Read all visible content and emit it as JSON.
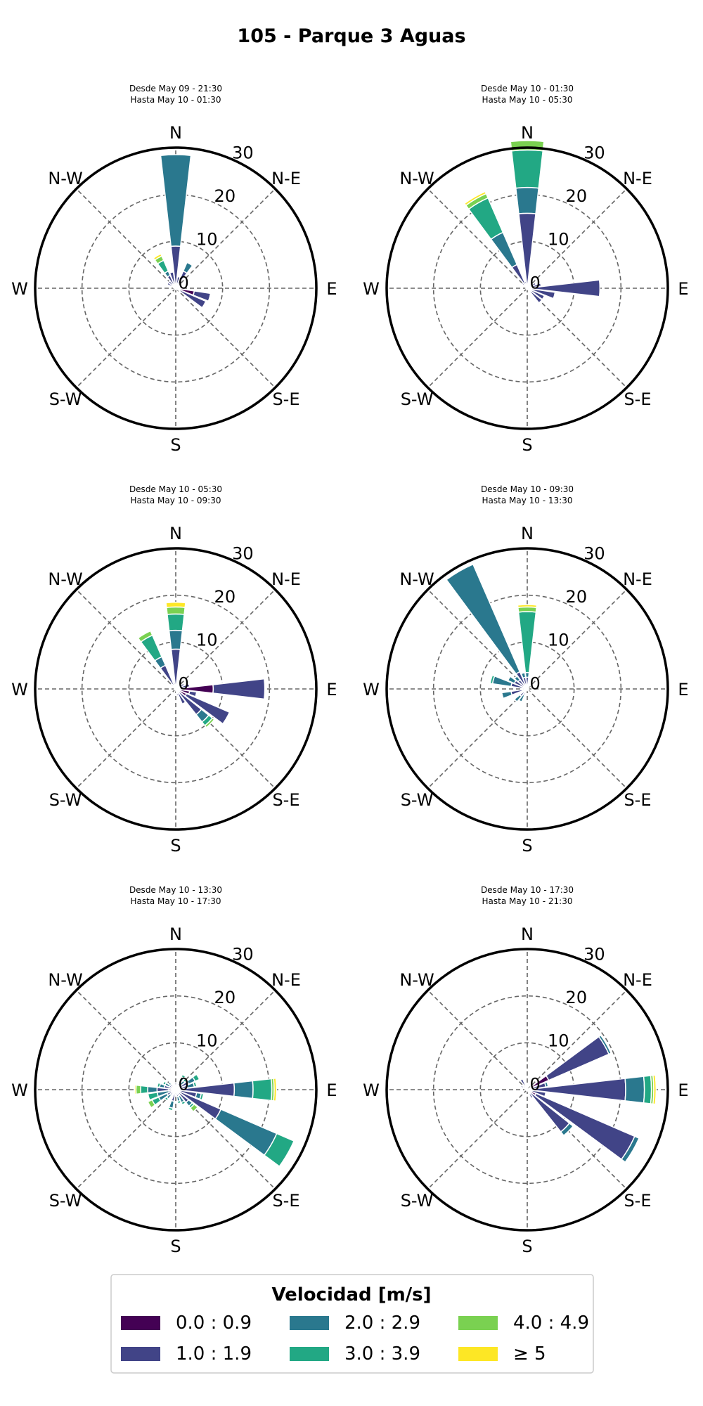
{
  "title": "105 - Parque 3 Aguas",
  "chart_data": [
    {
      "type": "polar_stacked_bar",
      "subtitle": [
        "Desde May 09 - 21:30",
        "Hasta May 10 - 01:30"
      ],
      "stacks": [
        {
          "dir": 0,
          "values": [
            0.5,
            8.5,
            19.5,
            0,
            0,
            0
          ]
        },
        {
          "dir": 15,
          "values": [
            0.5,
            2,
            0,
            0,
            0,
            0
          ]
        },
        {
          "dir": 30,
          "values": [
            0.5,
            3.5,
            2,
            0,
            0,
            0
          ]
        },
        {
          "dir": 45,
          "values": [
            0.3,
            1,
            0,
            0,
            0,
            0
          ]
        },
        {
          "dir": 60,
          "values": [
            0.3,
            0.5,
            0,
            0,
            0,
            0
          ]
        },
        {
          "dir": 75,
          "values": [
            0.5,
            0.5,
            0,
            0,
            0,
            0
          ]
        },
        {
          "dir": 90,
          "values": [
            1,
            0,
            0,
            0,
            0,
            0
          ]
        },
        {
          "dir": 105,
          "values": [
            4,
            3.5,
            0,
            0,
            0,
            0
          ]
        },
        {
          "dir": 120,
          "values": [
            0.5,
            6.5,
            0,
            0,
            0,
            0
          ]
        },
        {
          "dir": 135,
          "values": [
            0.3,
            0,
            0,
            0,
            0,
            0
          ]
        },
        {
          "dir": 165,
          "values": [
            0.3,
            0,
            0,
            0,
            0,
            0
          ]
        },
        {
          "dir": 195,
          "values": [
            0.3,
            0,
            0,
            0,
            0,
            0
          ]
        },
        {
          "dir": 225,
          "values": [
            0.3,
            0,
            0,
            0,
            0,
            0
          ]
        },
        {
          "dir": 255,
          "values": [
            0.3,
            0,
            0,
            0,
            0,
            0
          ]
        },
        {
          "dir": 285,
          "values": [
            0.5,
            0,
            0,
            0,
            0,
            0
          ]
        },
        {
          "dir": 300,
          "values": [
            0.5,
            1.5,
            0,
            0,
            0,
            0
          ]
        },
        {
          "dir": 315,
          "values": [
            0.5,
            1.5,
            0,
            0,
            0,
            0
          ]
        },
        {
          "dir": 330,
          "values": [
            0.5,
            2.5,
            1,
            2.5,
            1,
            0.5
          ]
        },
        {
          "dir": 345,
          "values": [
            0.5,
            3,
            0,
            0,
            0,
            0
          ]
        }
      ]
    },
    {
      "type": "polar_stacked_bar",
      "subtitle": [
        "Desde May 10 - 01:30",
        "Hasta May 10 - 05:30"
      ],
      "stacks": [
        {
          "dir": 0,
          "values": [
            0.5,
            15.5,
            5.5,
            8,
            2,
            0
          ]
        },
        {
          "dir": 15,
          "values": [
            0.3,
            0.5,
            0,
            0,
            0,
            0
          ]
        },
        {
          "dir": 30,
          "values": [
            0.3,
            0.5,
            0,
            0,
            0,
            0
          ]
        },
        {
          "dir": 45,
          "values": [
            0.3,
            0.5,
            0,
            0,
            0,
            0
          ]
        },
        {
          "dir": 60,
          "values": [
            0.5,
            1.5,
            0,
            0,
            0,
            0
          ]
        },
        {
          "dir": 75,
          "values": [
            0.5,
            2.5,
            0,
            0,
            0,
            0
          ]
        },
        {
          "dir": 90,
          "values": [
            0.5,
            15,
            0,
            0,
            0,
            0
          ]
        },
        {
          "dir": 105,
          "values": [
            0.5,
            5.5,
            0,
            0,
            0,
            0
          ]
        },
        {
          "dir": 120,
          "values": [
            1,
            3,
            0,
            0,
            0,
            0
          ]
        },
        {
          "dir": 135,
          "values": [
            0.5,
            3.5,
            0,
            0,
            0,
            0
          ]
        },
        {
          "dir": 165,
          "values": [
            0.3,
            0,
            0,
            0,
            0,
            0
          ]
        },
        {
          "dir": 195,
          "values": [
            0.3,
            0,
            0,
            0,
            0,
            0
          ]
        },
        {
          "dir": 225,
          "values": [
            0.3,
            0,
            0,
            0,
            0,
            0
          ]
        },
        {
          "dir": 255,
          "values": [
            0.3,
            0,
            0,
            0,
            0,
            0
          ]
        },
        {
          "dir": 285,
          "values": [
            0.3,
            0,
            0,
            0,
            0,
            0
          ]
        },
        {
          "dir": 315,
          "values": [
            0.5,
            1,
            0,
            0,
            0,
            0
          ]
        },
        {
          "dir": 330,
          "values": [
            0.5,
            5,
            7.5,
            8,
            1,
            0.5
          ]
        },
        {
          "dir": 345,
          "values": [
            0.5,
            1,
            0,
            0,
            0,
            0
          ]
        }
      ]
    },
    {
      "type": "polar_stacked_bar",
      "subtitle": [
        "Desde May 10 - 05:30",
        "Hasta May 10 - 09:30"
      ],
      "stacks": [
        {
          "dir": 0,
          "values": [
            0.5,
            8,
            4,
            3.5,
            1.5,
            1
          ]
        },
        {
          "dir": 15,
          "values": [
            0.3,
            0.5,
            0,
            0,
            0,
            0
          ]
        },
        {
          "dir": 30,
          "values": [
            0.3,
            0.5,
            0,
            0,
            0,
            0
          ]
        },
        {
          "dir": 45,
          "values": [
            0.3,
            0.5,
            0,
            0,
            0,
            0
          ]
        },
        {
          "dir": 60,
          "values": [
            0.5,
            1.5,
            0,
            0,
            0,
            0
          ]
        },
        {
          "dir": 75,
          "values": [
            0.5,
            2.5,
            0,
            0,
            0,
            0
          ]
        },
        {
          "dir": 90,
          "values": [
            8,
            11,
            0,
            0,
            0,
            0
          ]
        },
        {
          "dir": 105,
          "values": [
            3,
            1.5,
            0,
            0,
            0,
            0
          ]
        },
        {
          "dir": 120,
          "values": [
            2.5,
            10,
            0,
            0,
            0,
            0
          ]
        },
        {
          "dir": 135,
          "values": [
            1,
            6,
            2,
            1,
            0.5,
            0
          ]
        },
        {
          "dir": 150,
          "values": [
            1,
            2.5,
            0,
            0,
            0,
            0
          ]
        },
        {
          "dir": 165,
          "values": [
            0.5,
            1,
            0,
            0,
            0,
            0
          ]
        },
        {
          "dir": 195,
          "values": [
            0.3,
            0,
            0,
            0,
            0,
            0
          ]
        },
        {
          "dir": 225,
          "values": [
            0.3,
            0,
            0,
            0,
            0,
            0
          ]
        },
        {
          "dir": 255,
          "values": [
            0.3,
            0,
            0,
            0,
            0,
            0
          ]
        },
        {
          "dir": 285,
          "values": [
            0.3,
            0,
            0,
            0,
            0,
            0
          ]
        },
        {
          "dir": 315,
          "values": [
            0.3,
            1,
            0,
            0,
            0,
            0
          ]
        },
        {
          "dir": 330,
          "values": [
            0.5,
            5,
            2,
            5,
            1,
            0
          ]
        },
        {
          "dir": 345,
          "values": [
            0.5,
            1,
            0,
            0,
            0,
            0
          ]
        }
      ]
    },
    {
      "type": "polar_stacked_bar",
      "subtitle": [
        "Desde May 10 - 09:30",
        "Hasta May 10 - 13:30"
      ],
      "stacks": [
        {
          "dir": 0,
          "values": [
            0.5,
            2,
            1,
            13,
            1,
            0.5
          ]
        },
        {
          "dir": 30,
          "values": [
            0.3,
            0.5,
            0,
            0,
            0,
            0
          ]
        },
        {
          "dir": 60,
          "values": [
            0.3,
            0,
            0,
            0,
            0,
            0
          ]
        },
        {
          "dir": 90,
          "values": [
            0.3,
            0,
            0,
            0,
            0,
            0
          ]
        },
        {
          "dir": 120,
          "values": [
            0.3,
            0,
            0,
            0,
            0,
            0
          ]
        },
        {
          "dir": 150,
          "values": [
            0.3,
            0.5,
            0,
            0,
            0,
            0
          ]
        },
        {
          "dir": 180,
          "values": [
            0.3,
            0,
            0,
            0,
            0,
            0
          ]
        },
        {
          "dir": 210,
          "values": [
            0.5,
            1,
            1.5,
            0,
            0,
            0
          ]
        },
        {
          "dir": 225,
          "values": [
            0.5,
            1.5,
            1.5,
            0,
            0,
            0
          ]
        },
        {
          "dir": 255,
          "values": [
            0.5,
            3,
            2,
            0,
            0,
            0
          ]
        },
        {
          "dir": 285,
          "values": [
            0.5,
            3,
            4,
            0.5,
            0,
            0
          ]
        },
        {
          "dir": 300,
          "values": [
            0.5,
            2.5,
            1.5,
            0,
            0,
            0
          ]
        },
        {
          "dir": 315,
          "values": [
            0.5,
            2,
            1,
            0,
            0,
            0
          ]
        },
        {
          "dir": 330,
          "values": [
            0.5,
            3.5,
            25,
            0,
            0,
            0
          ]
        },
        {
          "dir": 345,
          "values": [
            0.5,
            2,
            1,
            0,
            0,
            0
          ]
        }
      ]
    },
    {
      "type": "polar_stacked_bar",
      "subtitle": [
        "Desde May 10 - 13:30",
        "Hasta May 10 - 17:30"
      ],
      "stacks": [
        {
          "dir": 0,
          "values": [
            0.5,
            1,
            0,
            0,
            0,
            0
          ]
        },
        {
          "dir": 30,
          "values": [
            0.5,
            1,
            1.5,
            0.5,
            0,
            0
          ]
        },
        {
          "dir": 45,
          "values": [
            0.5,
            1,
            1,
            0.5,
            0,
            0
          ]
        },
        {
          "dir": 60,
          "values": [
            0.5,
            2.5,
            1.5,
            1,
            0,
            0
          ]
        },
        {
          "dir": 75,
          "values": [
            0.5,
            2,
            1.5,
            0.5,
            0,
            0
          ]
        },
        {
          "dir": 90,
          "values": [
            0.5,
            12,
            4,
            4,
            0.5,
            0.5
          ]
        },
        {
          "dir": 105,
          "values": [
            0.5,
            4,
            1,
            0.5,
            0,
            0
          ]
        },
        {
          "dir": 120,
          "values": [
            0.5,
            10,
            13,
            4,
            0,
            0
          ]
        },
        {
          "dir": 135,
          "values": [
            0.5,
            3,
            1,
            0.5,
            1,
            0
          ]
        },
        {
          "dir": 150,
          "values": [
            0.5,
            1,
            1.5,
            0.5,
            0,
            0
          ]
        },
        {
          "dir": 165,
          "values": [
            0.5,
            1,
            1,
            0.5,
            0,
            0
          ]
        },
        {
          "dir": 195,
          "values": [
            0.5,
            2,
            1.5,
            0.5,
            0,
            0
          ]
        },
        {
          "dir": 225,
          "values": [
            0.5,
            1,
            1,
            0.5,
            0,
            0
          ]
        },
        {
          "dir": 240,
          "values": [
            0.5,
            1.5,
            2,
            1.5,
            1,
            0
          ]
        },
        {
          "dir": 255,
          "values": [
            0.5,
            1,
            2.5,
            2,
            0,
            0
          ]
        },
        {
          "dir": 270,
          "values": [
            1.5,
            2.5,
            2,
            1.5,
            1,
            0.3
          ]
        },
        {
          "dir": 285,
          "values": [
            0.5,
            2,
            1,
            0.5,
            0,
            0
          ]
        },
        {
          "dir": 300,
          "values": [
            0.5,
            1,
            1,
            0.5,
            0,
            0
          ]
        },
        {
          "dir": 315,
          "values": [
            0.5,
            1,
            0.5,
            0,
            0,
            0
          ]
        }
      ]
    },
    {
      "type": "polar_stacked_bar",
      "subtitle": [
        "Desde May 10 - 17:30",
        "Hasta May 10 - 21:30"
      ],
      "stacks": [
        {
          "dir": 0,
          "values": [
            0.5,
            0.5,
            0,
            0,
            0,
            0
          ]
        },
        {
          "dir": 60,
          "values": [
            5,
            14,
            0.5,
            0,
            0,
            0
          ]
        },
        {
          "dir": 75,
          "values": [
            1,
            3,
            0.5,
            0,
            0,
            0
          ]
        },
        {
          "dir": 90,
          "values": [
            1,
            20,
            4,
            1.5,
            0.5,
            0.5
          ]
        },
        {
          "dir": 105,
          "values": [
            1,
            3,
            0,
            0,
            0,
            0
          ]
        },
        {
          "dir": 120,
          "values": [
            2,
            23,
            1,
            0,
            0,
            0
          ]
        },
        {
          "dir": 135,
          "values": [
            0.5,
            11,
            1,
            0,
            0,
            0
          ]
        },
        {
          "dir": 150,
          "values": [
            1,
            1,
            0,
            0,
            0,
            0
          ]
        },
        {
          "dir": 180,
          "values": [
            0.3,
            0,
            0,
            0,
            0,
            0
          ]
        },
        {
          "dir": 210,
          "values": [
            0.3,
            0,
            0,
            0,
            0,
            0
          ]
        },
        {
          "dir": 240,
          "values": [
            0.3,
            0,
            0,
            0,
            0,
            0
          ]
        },
        {
          "dir": 270,
          "values": [
            0.5,
            0,
            0,
            0,
            0,
            0
          ]
        },
        {
          "dir": 300,
          "values": [
            0.5,
            1,
            0,
            0,
            0,
            0
          ]
        },
        {
          "dir": 330,
          "values": [
            0.5,
            2,
            0,
            0,
            0,
            0
          ]
        },
        {
          "dir": 345,
          "values": [
            0.5,
            0.5,
            0,
            0,
            0,
            0
          ]
        }
      ]
    }
  ],
  "directions": [
    "N",
    "N-E",
    "E",
    "S-E",
    "S",
    "S-W",
    "W",
    "N-W"
  ],
  "radial_ticks": [
    "0",
    "10",
    "20",
    "30"
  ],
  "rmax": 30,
  "legend": {
    "title": "Velocidad [m/s]",
    "items": [
      {
        "label": "0.0 : 0.9",
        "color": "#440154"
      },
      {
        "label": "1.0 : 1.9",
        "color": "#414487"
      },
      {
        "label": "2.0 : 2.9",
        "color": "#2a788e"
      },
      {
        "label": "3.0 : 3.9",
        "color": "#22a884"
      },
      {
        "label": "4.0 : 4.9",
        "color": "#7ad151"
      },
      {
        "label": "≥ 5",
        "color": "#fde725"
      }
    ]
  }
}
